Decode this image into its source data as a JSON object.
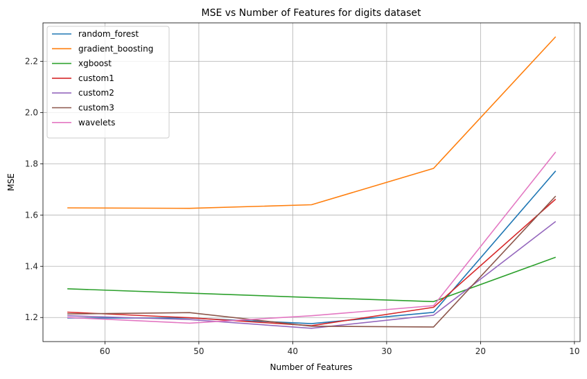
{
  "chart_data": {
    "type": "line",
    "title": "MSE vs Number of Features for digits dataset",
    "xlabel": "Number of Features",
    "ylabel": "MSE",
    "x": [
      64,
      51,
      38,
      25,
      12
    ],
    "xlim": [
      66.6,
      9.4
    ],
    "ylim": [
      1.106,
      2.35
    ],
    "x_inverted": true,
    "xticks": [
      60,
      50,
      40,
      30,
      20,
      10
    ],
    "yticks": [
      1.2,
      1.4,
      1.6,
      1.8,
      2.0,
      2.2
    ],
    "grid": true,
    "legend_position": "top-left",
    "series": [
      {
        "name": "random_forest",
        "color": "#1f77b4",
        "values": [
          1.198,
          1.198,
          1.176,
          1.22,
          1.772
        ]
      },
      {
        "name": "gradient_boosting",
        "color": "#ff7f0e",
        "values": [
          1.628,
          1.626,
          1.64,
          1.782,
          2.296
        ]
      },
      {
        "name": "xgboost",
        "color": "#2ca02c",
        "values": [
          1.312,
          1.295,
          1.278,
          1.262,
          1.435
        ]
      },
      {
        "name": "custom1",
        "color": "#d62728",
        "values": [
          1.221,
          1.199,
          1.168,
          1.24,
          1.662
        ]
      },
      {
        "name": "custom2",
        "color": "#9467bd",
        "values": [
          1.207,
          1.192,
          1.158,
          1.209,
          1.575
        ]
      },
      {
        "name": "custom3",
        "color": "#8c564b",
        "values": [
          1.214,
          1.219,
          1.166,
          1.163,
          1.674
        ]
      },
      {
        "name": "wavelets",
        "color": "#e377c2",
        "values": [
          1.2,
          1.178,
          1.207,
          1.246,
          1.846
        ]
      }
    ]
  }
}
